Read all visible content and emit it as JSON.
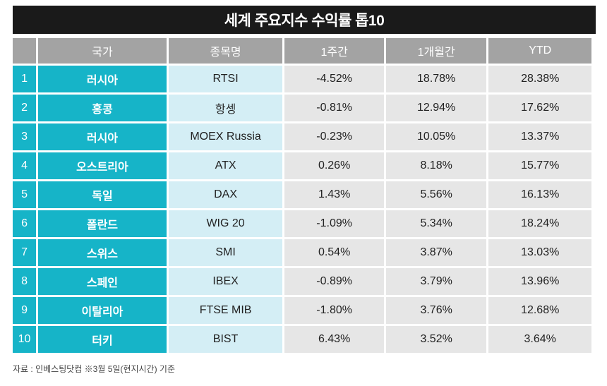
{
  "title": "세계 주요지수 수익률  톱10",
  "headers": [
    "",
    "국가",
    "종목명",
    "1주간",
    "1개월간",
    "YTD"
  ],
  "rows": [
    {
      "rank": "1",
      "country": "러시아",
      "index": "RTSI",
      "week": "-4.52%",
      "month": "18.78%",
      "ytd": "28.38%"
    },
    {
      "rank": "2",
      "country": "홍콩",
      "index": "항셍",
      "week": "-0.81%",
      "month": "12.94%",
      "ytd": "17.62%"
    },
    {
      "rank": "3",
      "country": "러시아",
      "index": "MOEX Russia",
      "week": "-0.23%",
      "month": "10.05%",
      "ytd": "13.37%"
    },
    {
      "rank": "4",
      "country": "오스트리아",
      "index": "ATX",
      "week": "0.26%",
      "month": "8.18%",
      "ytd": "15.77%"
    },
    {
      "rank": "5",
      "country": "독일",
      "index": "DAX",
      "week": "1.43%",
      "month": "5.56%",
      "ytd": "16.13%"
    },
    {
      "rank": "6",
      "country": "폴란드",
      "index": "WIG 20",
      "week": "-1.09%",
      "month": "5.34%",
      "ytd": "18.24%"
    },
    {
      "rank": "7",
      "country": "스위스",
      "index": "SMI",
      "week": "0.54%",
      "month": "3.87%",
      "ytd": "13.03%"
    },
    {
      "rank": "8",
      "country": "스페인",
      "index": "IBEX",
      "week": "-0.89%",
      "month": "3.79%",
      "ytd": "13.96%"
    },
    {
      "rank": "9",
      "country": "이탈리아",
      "index": "FTSE MIB",
      "week": "-1.80%",
      "month": "3.76%",
      "ytd": "12.68%"
    },
    {
      "rank": "10",
      "country": "터키",
      "index": "BIST",
      "week": "6.43%",
      "month": "3.52%",
      "ytd": "3.64%"
    }
  ],
  "source": "자료 : 인베스팅닷컴 ※3월 5일(현지시간) 기준",
  "colors": {
    "title_bg": "#1a1a1a",
    "header_bg": "#a3a3a3",
    "accent": "#16b4c8",
    "index_bg": "#d4eef5",
    "num_bg": "#e6e6e6"
  }
}
